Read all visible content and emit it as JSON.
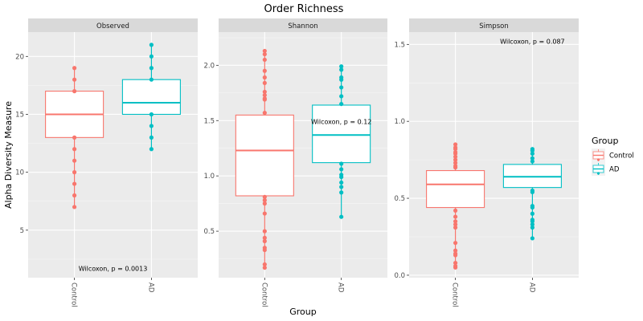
{
  "chart_data": {
    "type": "boxplot",
    "title": "Order Richness",
    "xlabel": "Group",
    "ylabel": "Alpha Diversity Measure",
    "categories": [
      "Control",
      "AD"
    ],
    "legend": {
      "title": "Group",
      "position": "right",
      "entries": [
        {
          "label": "Control",
          "color": "#F8766D"
        },
        {
          "label": "AD",
          "color": "#00BFC4"
        }
      ]
    },
    "grid": true,
    "facets": [
      {
        "name": "Observed",
        "ylim": [
          0.9,
          22.1
        ],
        "yticks": [
          5,
          10,
          15,
          20
        ],
        "ytick_labels": [
          "5",
          "10",
          "15",
          "20"
        ],
        "annotation": {
          "text": "Wilcoxon, p = 0.0013",
          "x_group": 0.5,
          "y": 1.7
        },
        "groups": [
          {
            "name": "Control",
            "box": {
              "lower_whisker": 7,
              "q1": 13,
              "median": 15,
              "q3": 17,
              "upper_whisker": 19
            },
            "points": [
              19,
              18,
              17,
              13,
              12,
              11,
              10,
              9,
              8,
              7
            ]
          },
          {
            "name": "AD",
            "box": {
              "lower_whisker": 12,
              "q1": 15,
              "median": 16,
              "q3": 18,
              "upper_whisker": 21
            },
            "points": [
              21,
              20,
              19,
              18,
              15,
              14,
              13,
              12
            ]
          }
        ]
      },
      {
        "name": "Shannon",
        "ylim": [
          0.08,
          2.3
        ],
        "yticks": [
          0.5,
          1.0,
          1.5,
          2.0
        ],
        "ytick_labels": [
          "0.5",
          "1.0",
          "1.5",
          "2.0"
        ],
        "annotation": {
          "text": "Wilcoxon, p = 0.12",
          "x_group": 1.0,
          "y": 1.49
        },
        "groups": [
          {
            "name": "Control",
            "box": {
              "lower_whisker": 0.17,
              "q1": 0.82,
              "median": 1.23,
              "q3": 1.55,
              "upper_whisker": 2.13
            },
            "points": [
              2.13,
              2.1,
              2.05,
              1.95,
              1.89,
              1.84,
              1.76,
              1.73,
              1.7,
              1.69,
              1.57,
              0.81,
              0.78,
              0.75,
              0.66,
              0.5,
              0.44,
              0.41,
              0.35,
              0.33,
              0.2,
              0.17
            ]
          },
          {
            "name": "AD",
            "box": {
              "lower_whisker": 0.63,
              "q1": 1.12,
              "median": 1.37,
              "q3": 1.64,
              "upper_whisker": 1.99
            },
            "points": [
              1.99,
              1.96,
              1.89,
              1.87,
              1.8,
              1.72,
              1.65,
              1.11,
              1.06,
              1.01,
              0.99,
              0.94,
              0.9,
              0.85,
              0.63
            ]
          }
        ]
      },
      {
        "name": "Simpson",
        "ylim": [
          -0.016,
          1.58
        ],
        "yticks": [
          0.0,
          0.5,
          1.0,
          1.5
        ],
        "ytick_labels": [
          "0.0",
          "0.5",
          "1.0",
          "1.5"
        ],
        "annotation": {
          "text": "Wilcoxon, p = 0.087",
          "x_group": 1.0,
          "y": 1.52
        },
        "groups": [
          {
            "name": "Control",
            "box": {
              "lower_whisker": 0.05,
              "q1": 0.44,
              "median": 0.59,
              "q3": 0.68,
              "upper_whisker": 0.85
            },
            "points": [
              0.85,
              0.83,
              0.82,
              0.8,
              0.79,
              0.77,
              0.75,
              0.73,
              0.71,
              0.7,
              0.42,
              0.38,
              0.35,
              0.33,
              0.31,
              0.21,
              0.16,
              0.14,
              0.13,
              0.08,
              0.06,
              0.05
            ]
          },
          {
            "name": "AD",
            "box": {
              "lower_whisker": 0.24,
              "q1": 0.57,
              "median": 0.64,
              "q3": 0.72,
              "upper_whisker": 0.82
            },
            "points": [
              0.82,
              0.81,
              0.79,
              0.76,
              0.74,
              0.55,
              0.54,
              0.45,
              0.44,
              0.4,
              0.36,
              0.35,
              0.33,
              0.31,
              0.24
            ]
          }
        ]
      }
    ]
  }
}
